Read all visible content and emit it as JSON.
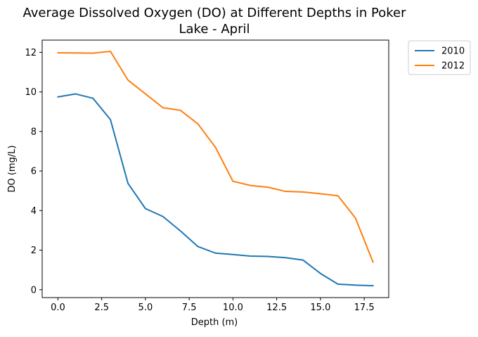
{
  "chart_data": {
    "type": "line",
    "title_lines": [
      "Average Dissolved Oxygen (DO) at Different Depths in Poker",
      "Lake - April"
    ],
    "xlabel": "Depth (m)",
    "ylabel": "DO (mg/L)",
    "xlim": [
      -0.9,
      18.9
    ],
    "ylim": [
      -0.4,
      12.62
    ],
    "xticks": [
      0.0,
      2.5,
      5.0,
      7.5,
      10.0,
      12.5,
      15.0,
      17.5
    ],
    "xtick_labels": [
      "0.0",
      "2.5",
      "5.0",
      "7.5",
      "10.0",
      "12.5",
      "15.0",
      "17.5"
    ],
    "yticks": [
      0,
      2,
      4,
      6,
      8,
      10,
      12
    ],
    "ytick_labels": [
      "0",
      "2",
      "4",
      "6",
      "8",
      "10",
      "12"
    ],
    "grid": false,
    "legend_position": "outside upper right",
    "x": [
      0,
      1,
      2,
      3,
      4,
      5,
      6,
      7,
      8,
      9,
      10,
      11,
      12,
      13,
      14,
      15,
      16,
      17,
      18
    ],
    "series": [
      {
        "name": "2010",
        "color": "#1f77b4",
        "values": [
          9.75,
          9.9,
          9.68,
          8.6,
          5.38,
          4.1,
          3.7,
          2.97,
          2.18,
          1.85,
          1.78,
          1.7,
          1.68,
          1.62,
          1.5,
          0.82,
          0.28,
          0.23,
          0.2
        ]
      },
      {
        "name": "2012",
        "color": "#ff7f0e",
        "values": [
          11.98,
          11.97,
          11.96,
          12.05,
          10.6,
          9.9,
          9.2,
          9.07,
          8.38,
          7.2,
          5.48,
          5.27,
          5.18,
          4.97,
          4.94,
          4.85,
          4.75,
          3.62,
          1.4
        ]
      }
    ]
  }
}
